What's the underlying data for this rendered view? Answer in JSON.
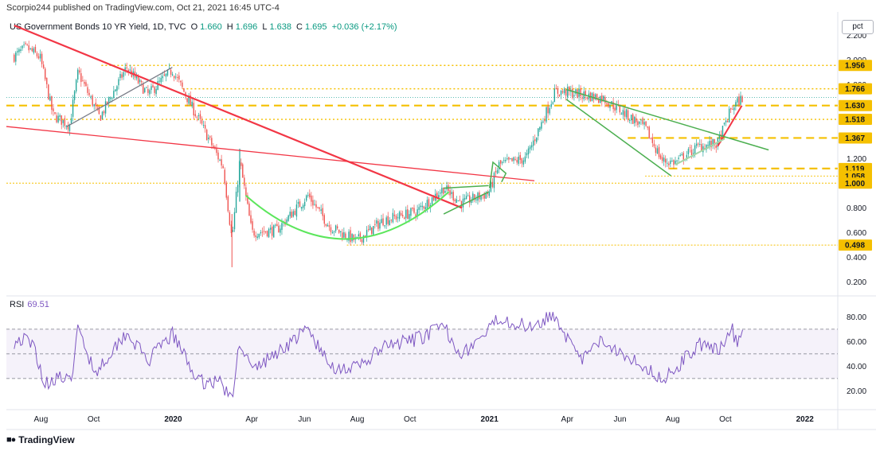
{
  "header": {
    "publish_line": "Scorpio244 published on TradingView.com, Oct 21, 2021 16:45 UTC-4"
  },
  "legend": {
    "symbol": "US Government Bonds 10 YR Yield, 1D, TVC",
    "o_label": "O",
    "o_value": "1.660",
    "h_label": "H",
    "h_value": "1.696",
    "l_label": "L",
    "l_value": "1.638",
    "c_label": "C",
    "c_value": "1.695",
    "change": "+0.036 (+2.17%)"
  },
  "rsi_legend": {
    "label": "RSI",
    "value": "69.51"
  },
  "axis_unit": "pct",
  "footer": {
    "brand": "TradingView"
  },
  "colors": {
    "up": "#26a69a",
    "down": "#ef5350",
    "rsi": "#7e57c2",
    "trend_red": "#f23645",
    "trend_green": "#4caf50",
    "level": "#f5c000",
    "dark_line": "#787b86"
  },
  "chart_data": [
    {
      "type": "candlestick",
      "title": "US Government Bonds 10 YR Yield, 1D, TVC",
      "x_ticks": [
        "Aug",
        "Oct",
        "2020",
        "Apr",
        "Jun",
        "Aug",
        "Oct",
        "2021",
        "Apr",
        "Jun",
        "Aug",
        "Oct",
        "2022"
      ],
      "y_ticks": [
        "2.200",
        "2.000",
        "1.800",
        "1.200",
        "1.000",
        "0.800",
        "0.600",
        "0.400",
        "0.200"
      ],
      "ylim": [
        0.15,
        2.28
      ],
      "price_labels": [
        {
          "value": 1.956,
          "label": "1.956"
        },
        {
          "value": 1.766,
          "label": "1.766"
        },
        {
          "value": 1.63,
          "label": "1.630"
        },
        {
          "value": 1.518,
          "label": "1.518"
        },
        {
          "value": 1.367,
          "label": "1.367"
        },
        {
          "value": 1.119,
          "label": "1.119"
        },
        {
          "value": 1.058,
          "label": "1.058"
        },
        {
          "value": 1.0,
          "label": "1.000"
        },
        {
          "value": 0.498,
          "label": "0.498"
        }
      ],
      "levels": [
        1.956,
        1.766,
        1.63,
        1.518,
        1.367,
        1.119,
        1.058,
        1.0,
        0.498
      ],
      "current_value": 1.695,
      "series": [
        {
          "points": [
            [
              "2019-07-01",
              2.03
            ],
            [
              "2019-07-15",
              2.1
            ],
            [
              "2019-07-31",
              2.02
            ],
            [
              "2019-08-15",
              1.55
            ],
            [
              "2019-09-03",
              1.47
            ],
            [
              "2019-09-13",
              1.9
            ],
            [
              "2019-10-08",
              1.53
            ],
            [
              "2019-11-08",
              1.94
            ],
            [
              "2019-12-03",
              1.72
            ],
            [
              "2019-12-31",
              1.92
            ],
            [
              "2020-01-31",
              1.51
            ],
            [
              "2020-02-28",
              1.13
            ],
            [
              "2020-03-09",
              0.54
            ],
            [
              "2020-03-18",
              1.18
            ],
            [
              "2020-04-01",
              0.6
            ],
            [
              "2020-04-30",
              0.62
            ],
            [
              "2020-06-05",
              0.9
            ],
            [
              "2020-06-30",
              0.65
            ],
            [
              "2020-07-31",
              0.53
            ],
            [
              "2020-08-31",
              0.7
            ],
            [
              "2020-10-09",
              0.77
            ],
            [
              "2020-11-09",
              0.96
            ],
            [
              "2020-11-30",
              0.84
            ],
            [
              "2020-12-31",
              0.92
            ],
            [
              "2021-01-12",
              1.15
            ],
            [
              "2021-02-12",
              1.2
            ],
            [
              "2021-03-18",
              1.74
            ],
            [
              "2021-03-31",
              1.74
            ],
            [
              "2021-05-12",
              1.69
            ],
            [
              "2021-06-30",
              1.45
            ],
            [
              "2021-07-20",
              1.18
            ],
            [
              "2021-08-04",
              1.17
            ],
            [
              "2021-08-31",
              1.3
            ],
            [
              "2021-09-22",
              1.32
            ],
            [
              "2021-10-08",
              1.61
            ],
            [
              "2021-10-21",
              1.695
            ]
          ]
        }
      ]
    },
    {
      "type": "line",
      "title": "RSI",
      "y_ticks": [
        "80.00",
        "60.00",
        "40.00",
        "20.00"
      ],
      "ylim": [
        8,
        88
      ],
      "bands": [
        70,
        50,
        30
      ],
      "current_value": 69.51,
      "series": [
        {
          "points": [
            [
              "2019-07-01",
              60
            ],
            [
              "2019-07-12",
              62
            ],
            [
              "2019-07-25",
              55
            ],
            [
              "2019-08-05",
              25
            ],
            [
              "2019-08-20",
              32
            ],
            [
              "2019-09-04",
              26
            ],
            [
              "2019-09-13",
              70
            ],
            [
              "2019-10-03",
              35
            ],
            [
              "2019-11-08",
              68
            ],
            [
              "2019-12-03",
              44
            ],
            [
              "2019-12-31",
              66
            ],
            [
              "2020-01-31",
              27
            ],
            [
              "2020-02-25",
              28
            ],
            [
              "2020-03-09",
              11
            ],
            [
              "2020-03-18",
              62
            ],
            [
              "2020-04-01",
              36
            ],
            [
              "2020-06-05",
              70
            ],
            [
              "2020-06-30",
              40
            ],
            [
              "2020-07-31",
              38
            ],
            [
              "2020-08-31",
              55
            ],
            [
              "2020-10-09",
              62
            ],
            [
              "2020-11-09",
              72
            ],
            [
              "2020-11-30",
              50
            ],
            [
              "2020-12-31",
              68
            ],
            [
              "2021-01-12",
              80
            ],
            [
              "2021-02-12",
              72
            ],
            [
              "2021-03-18",
              82
            ],
            [
              "2021-04-15",
              44
            ],
            [
              "2021-05-12",
              61
            ],
            [
              "2021-06-30",
              40
            ],
            [
              "2021-07-20",
              29
            ],
            [
              "2021-08-04",
              38
            ],
            [
              "2021-08-31",
              58
            ],
            [
              "2021-09-22",
              52
            ],
            [
              "2021-10-08",
              72
            ],
            [
              "2021-10-14",
              58
            ],
            [
              "2021-10-21",
              69.51
            ]
          ]
        }
      ]
    }
  ]
}
